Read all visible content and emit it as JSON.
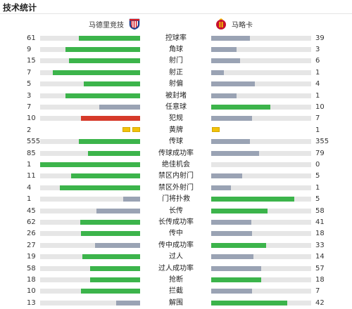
{
  "header": {
    "title": "技术统计"
  },
  "home": {
    "name": "马德里竞技",
    "crest": "atletico-madrid-crest"
  },
  "away": {
    "name": "马略卡",
    "crest": "mallorca-crest"
  },
  "colors": {
    "green": "#3cb44b",
    "gray": "#9aa3b4",
    "red": "#d63a2a",
    "track": "#e6e6e6",
    "yellow": "#f2c20a"
  },
  "stats": [
    {
      "label": "控球率",
      "home": "61",
      "away": "39",
      "home_frac": 0.61,
      "away_frac": 0.39,
      "home_color": "green",
      "away_color": "gray"
    },
    {
      "label": "角球",
      "home": "9",
      "away": "3",
      "home_frac": 0.75,
      "away_frac": 0.25,
      "home_color": "green",
      "away_color": "gray"
    },
    {
      "label": "射门",
      "home": "15",
      "away": "6",
      "home_frac": 0.71,
      "away_frac": 0.29,
      "home_color": "green",
      "away_color": "gray"
    },
    {
      "label": "射正",
      "home": "7",
      "away": "1",
      "home_frac": 0.875,
      "away_frac": 0.125,
      "home_color": "green",
      "away_color": "gray"
    },
    {
      "label": "射偏",
      "home": "5",
      "away": "4",
      "home_frac": 0.56,
      "away_frac": 0.44,
      "home_color": "green",
      "away_color": "gray"
    },
    {
      "label": "被封堵",
      "home": "3",
      "away": "1",
      "home_frac": 0.75,
      "away_frac": 0.25,
      "home_color": "green",
      "away_color": "gray"
    },
    {
      "label": "任意球",
      "home": "7",
      "away": "10",
      "home_frac": 0.41,
      "away_frac": 0.59,
      "home_color": "gray",
      "away_color": "green"
    },
    {
      "label": "犯规",
      "home": "10",
      "away": "7",
      "home_frac": 0.59,
      "away_frac": 0.41,
      "home_color": "red",
      "away_color": "gray"
    },
    {
      "label": "黄牌",
      "home": "2",
      "away": "1",
      "home_cards": 2,
      "away_cards": 1
    },
    {
      "label": "传球",
      "home": "555",
      "away": "355",
      "home_frac": 0.61,
      "away_frac": 0.39,
      "home_color": "green",
      "away_color": "gray"
    },
    {
      "label": "传球成功率",
      "home": "85",
      "away": "79",
      "home_frac": 0.52,
      "away_frac": 0.48,
      "home_color": "green",
      "away_color": "gray"
    },
    {
      "label": "绝佳机会",
      "home": "1",
      "away": "0",
      "home_frac": 1.0,
      "away_frac": 0.0,
      "home_color": "green",
      "away_color": "gray"
    },
    {
      "label": "禁区内射门",
      "home": "11",
      "away": "5",
      "home_frac": 0.69,
      "away_frac": 0.31,
      "home_color": "green",
      "away_color": "gray"
    },
    {
      "label": "禁区外射门",
      "home": "4",
      "away": "1",
      "home_frac": 0.8,
      "away_frac": 0.2,
      "home_color": "green",
      "away_color": "gray"
    },
    {
      "label": "门将扑救",
      "home": "1",
      "away": "5",
      "home_frac": 0.17,
      "away_frac": 0.83,
      "home_color": "gray",
      "away_color": "green"
    },
    {
      "label": "长传",
      "home": "45",
      "away": "58",
      "home_frac": 0.44,
      "away_frac": 0.56,
      "home_color": "gray",
      "away_color": "green"
    },
    {
      "label": "长传成功率",
      "home": "62",
      "away": "41",
      "home_frac": 0.6,
      "away_frac": 0.4,
      "home_color": "green",
      "away_color": "gray"
    },
    {
      "label": "传中",
      "home": "26",
      "away": "18",
      "home_frac": 0.59,
      "away_frac": 0.41,
      "home_color": "green",
      "away_color": "gray"
    },
    {
      "label": "传中成功率",
      "home": "27",
      "away": "33",
      "home_frac": 0.45,
      "away_frac": 0.55,
      "home_color": "gray",
      "away_color": "green"
    },
    {
      "label": "过人",
      "home": "19",
      "away": "14",
      "home_frac": 0.58,
      "away_frac": 0.42,
      "home_color": "green",
      "away_color": "gray"
    },
    {
      "label": "过人成功率",
      "home": "58",
      "away": "57",
      "home_frac": 0.5,
      "away_frac": 0.5,
      "home_color": "green",
      "away_color": "gray"
    },
    {
      "label": "抢断",
      "home": "18",
      "away": "18",
      "home_frac": 0.5,
      "away_frac": 0.5,
      "home_color": "green",
      "away_color": "green"
    },
    {
      "label": "拦截",
      "home": "10",
      "away": "7",
      "home_frac": 0.59,
      "away_frac": 0.41,
      "home_color": "green",
      "away_color": "gray"
    },
    {
      "label": "解围",
      "home": "13",
      "away": "42",
      "home_frac": 0.24,
      "away_frac": 0.76,
      "home_color": "gray",
      "away_color": "green"
    }
  ]
}
